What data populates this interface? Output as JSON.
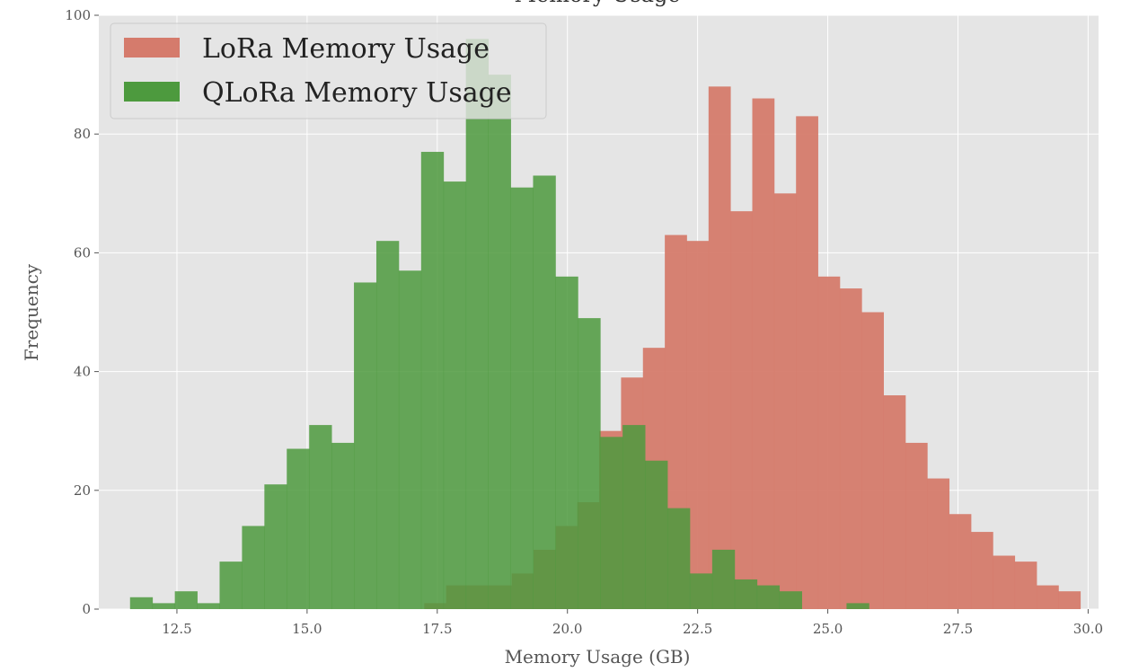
{
  "chart_data": {
    "type": "bar",
    "title": "Memory Usage",
    "xlabel": "Memory Usage (GB)",
    "ylabel": "Frequency",
    "xlim": [
      11.0,
      30.2
    ],
    "ylim": [
      0,
      100
    ],
    "xticks": [
      "12.5",
      "15.0",
      "17.5",
      "20.0",
      "22.5",
      "25.0",
      "27.5",
      "30.0"
    ],
    "yticks": [
      "0",
      "20",
      "40",
      "60",
      "80",
      "100"
    ],
    "grid": true,
    "legend_position": "top-left",
    "colors": {
      "background": "#e5e5e5",
      "grid": "#ffffff",
      "lora": "#d57b6c",
      "qlora": "#4d9a3e"
    },
    "series": [
      {
        "name": "LoRa Memory Usage",
        "bin_start": 17.25,
        "bin_width": 0.42,
        "values": [
          1,
          4,
          4,
          4,
          6,
          10,
          14,
          18,
          30,
          39,
          44,
          63,
          62,
          88,
          67,
          86,
          70,
          83,
          56,
          54,
          50,
          36,
          28,
          22,
          16,
          13,
          9,
          8,
          4,
          3
        ]
      },
      {
        "name": "QLoRa Memory Usage",
        "bin_start": 11.6,
        "bin_width": 0.43,
        "values": [
          2,
          1,
          3,
          1,
          8,
          14,
          21,
          27,
          31,
          28,
          55,
          62,
          57,
          77,
          72,
          96,
          90,
          71,
          73,
          56,
          49,
          29,
          31,
          25,
          17,
          6,
          10,
          5,
          4,
          3,
          0,
          0,
          1
        ]
      }
    ]
  }
}
